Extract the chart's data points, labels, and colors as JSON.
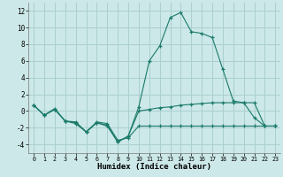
{
  "xlabel": "Humidex (Indice chaleur)",
  "background_color": "#cce8e8",
  "grid_color": "#aacfcf",
  "line_color": "#1a7a6a",
  "xlim": [
    -0.5,
    23.5
  ],
  "ylim": [
    -5,
    13
  ],
  "yticks": [
    -4,
    -2,
    0,
    2,
    4,
    6,
    8,
    10,
    12
  ],
  "xticks": [
    0,
    1,
    2,
    3,
    4,
    5,
    6,
    7,
    8,
    9,
    10,
    11,
    12,
    13,
    14,
    15,
    16,
    17,
    18,
    19,
    20,
    21,
    22,
    23
  ],
  "series": [
    {
      "x": [
        0,
        1,
        2,
        3,
        4,
        5,
        6,
        7,
        8,
        9,
        10,
        11,
        12,
        13,
        14,
        15,
        16,
        17,
        18,
        19,
        20,
        21,
        22,
        23
      ],
      "y": [
        0.7,
        -0.5,
        0.2,
        -1.2,
        -1.3,
        -2.5,
        -1.3,
        -1.5,
        -3.5,
        -3.2,
        -1.8,
        -1.8,
        -1.8,
        -1.8,
        -1.8,
        -1.8,
        -1.8,
        -1.8,
        -1.8,
        -1.8,
        -1.8,
        -1.8,
        -1.8,
        -1.8
      ]
    },
    {
      "x": [
        0,
        1,
        2,
        3,
        4,
        5,
        6,
        7,
        8,
        9,
        10,
        11,
        12,
        13,
        14,
        15,
        16,
        17,
        18,
        19,
        20,
        21,
        22,
        23
      ],
      "y": [
        0.7,
        -0.5,
        0.2,
        -1.2,
        -1.4,
        -2.5,
        -1.4,
        -1.7,
        -3.7,
        -3.0,
        0.0,
        0.2,
        0.4,
        0.5,
        0.7,
        0.8,
        0.9,
        1.0,
        1.0,
        1.0,
        1.0,
        1.0,
        -1.8,
        -1.8
      ]
    },
    {
      "x": [
        0,
        1,
        2,
        3,
        4,
        5,
        6,
        7,
        8,
        9,
        10,
        11,
        12,
        13,
        14,
        15,
        16,
        17,
        18,
        19,
        20,
        21,
        22,
        23
      ],
      "y": [
        0.7,
        -0.5,
        0.3,
        -1.2,
        -1.5,
        -2.5,
        -1.4,
        -1.8,
        -3.7,
        -3.0,
        0.5,
        6.0,
        7.8,
        11.2,
        11.8,
        9.5,
        9.3,
        8.8,
        5.0,
        1.2,
        1.0,
        -0.8,
        -1.8,
        -1.8
      ]
    }
  ]
}
